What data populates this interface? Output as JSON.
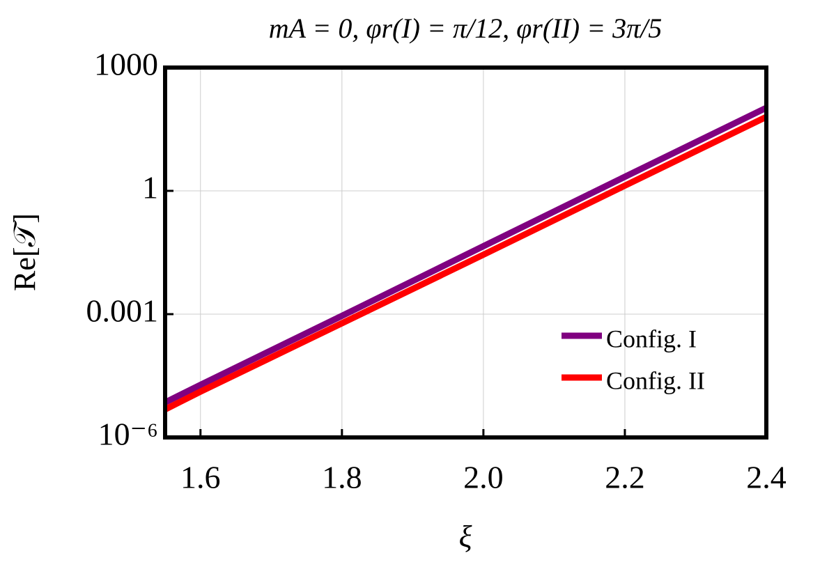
{
  "chart_data": {
    "type": "line",
    "title": "mA = 0,  φr(I) = π/12,  φr(II) = 3π/5",
    "x_label": "ξ",
    "y_label": "Re[𝒯]",
    "x": [
      1.55,
      1.6,
      1.8,
      2.0,
      2.2,
      2.4
    ],
    "series": [
      {
        "name": "Config. I",
        "color": "#800080",
        "values": [
          7.1e-06,
          1.9e-05,
          0.00091,
          0.045,
          2.2,
          105
        ]
      },
      {
        "name": "Config. II",
        "color": "#ff0000",
        "values": [
          4.8e-06,
          1.3e-05,
          0.0006,
          0.028,
          1.34,
          63
        ]
      }
    ],
    "xlim": [
      1.55,
      2.4
    ],
    "xticks": [
      1.6,
      1.8,
      {
        "value": 2.0,
        "label": "2.0"
      },
      2.2,
      2.4
    ],
    "ylim": [
      1e-06,
      1000
    ],
    "yticks": [
      {
        "value": 1e-06,
        "label": "10⁻⁶"
      },
      0.001,
      1,
      1000
    ],
    "log_y": true,
    "grid": true,
    "legend": "lower right"
  }
}
